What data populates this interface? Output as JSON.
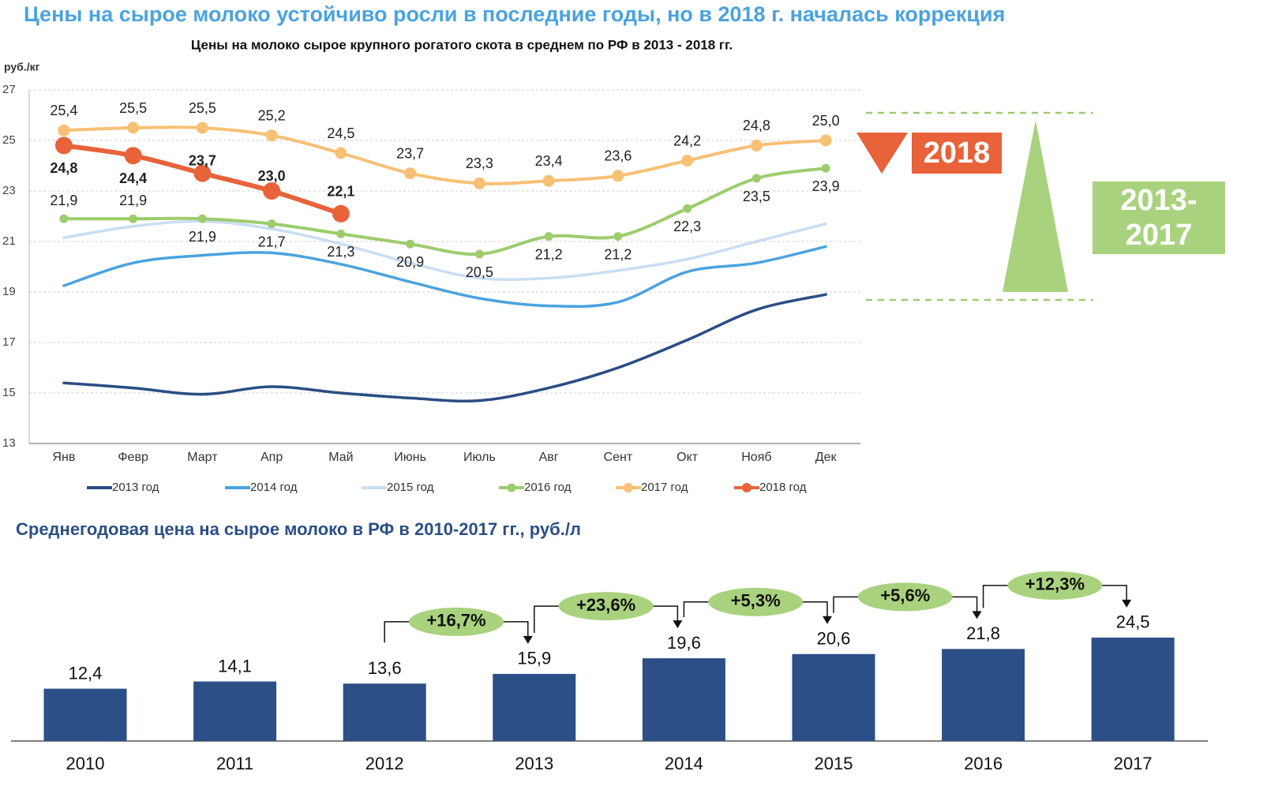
{
  "headline": "Цены на сырое молоко устойчиво росли в последние годы, но в 2018 г. началась коррекция",
  "chart_data": [
    {
      "type": "line",
      "title": "Цены на молоко сырое крупного рогатого скота в среднем по РФ в 2013 - 2018 гг.",
      "y_label": "руб./кг",
      "categories": [
        "Янв",
        "Февр",
        "Март",
        "Апр",
        "Май",
        "Июнь",
        "Июль",
        "Авг",
        "Сент",
        "Окт",
        "Нояб",
        "Дек"
      ],
      "series": [
        {
          "name": "2013 год",
          "color": "#2a4d84",
          "values": [
            15.4,
            15.2,
            14.95,
            15.25,
            15.0,
            14.8,
            14.7,
            15.2,
            16.0,
            17.1,
            18.3,
            18.9
          ]
        },
        {
          "name": "2014 год",
          "color": "#4aa3df",
          "values": [
            19.25,
            20.15,
            20.45,
            20.55,
            20.1,
            19.4,
            18.75,
            18.45,
            18.6,
            19.8,
            20.15,
            20.8
          ]
        },
        {
          "name": "2015 год",
          "color": "#c9def2",
          "values": [
            21.15,
            21.6,
            21.8,
            21.5,
            20.9,
            20.15,
            19.55,
            19.55,
            19.85,
            20.3,
            21.0,
            21.7
          ]
        },
        {
          "name": "2016 год",
          "color": "#9dcc6d",
          "values": [
            21.9,
            21.9,
            21.9,
            21.7,
            21.3,
            20.9,
            20.5,
            21.2,
            21.2,
            22.3,
            23.5,
            23.9
          ],
          "value_labels": [
            "21,9",
            "21,9",
            "21,9",
            "21,7",
            "21,3",
            "20,9",
            "20,5",
            "21,2",
            "21,2",
            "22,3",
            "23,5",
            "23,9"
          ]
        },
        {
          "name": "2017 год",
          "color": "#f7c074",
          "values": [
            25.4,
            25.5,
            25.5,
            25.2,
            24.5,
            23.7,
            23.3,
            23.4,
            23.6,
            24.2,
            24.8,
            25.0
          ],
          "value_labels": [
            "25,4",
            "25,5",
            "25,5",
            "25,2",
            "24,5",
            "23,7",
            "23,3",
            "23,4",
            "23,6",
            "24,2",
            "24,8",
            "25,0"
          ]
        },
        {
          "name": "2018 год",
          "color": "#e8623a",
          "values": [
            24.8,
            24.4,
            23.7,
            23.0,
            22.1,
            null,
            null,
            null,
            null,
            null,
            null,
            null
          ],
          "value_labels": [
            "24,8",
            "24,4",
            "23,7",
            "23,0",
            "22,1",
            null,
            null,
            null,
            null,
            null,
            null,
            null
          ]
        }
      ],
      "ylim": [
        13,
        27
      ],
      "yticks": [
        13,
        15,
        17,
        19,
        21,
        23,
        25,
        27
      ],
      "grid": true,
      "legend": "bottom",
      "annotations": [
        "2018",
        "2013-2017"
      ]
    },
    {
      "type": "bar",
      "title": "Среднегодовая цена на сырое молоко в РФ в 2010-2017 гг., руб./л",
      "categories": [
        "2010",
        "2011",
        "2012",
        "2013",
        "2014",
        "2015",
        "2016",
        "2017"
      ],
      "values": [
        12.4,
        14.1,
        13.6,
        15.9,
        19.6,
        20.6,
        21.8,
        24.5
      ],
      "value_labels": [
        "12,4",
        "14,1",
        "13,6",
        "15,9",
        "19,6",
        "20,6",
        "21,8",
        "24,5"
      ],
      "growth_labels": [
        null,
        null,
        null,
        "+16,7%",
        "+23,6%",
        "+5,3%",
        "+5,6%",
        "+12,3%"
      ],
      "color": "#2b4f86"
    }
  ]
}
